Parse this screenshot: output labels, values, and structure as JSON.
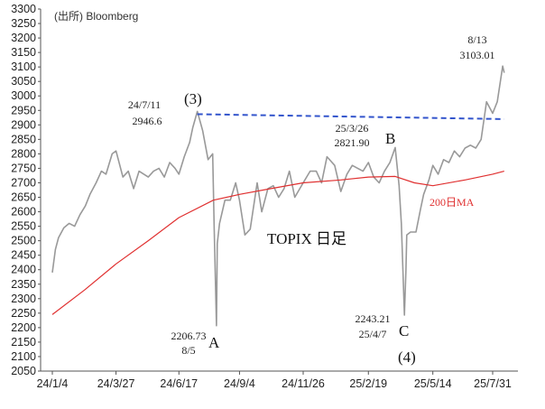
{
  "source_note": "(出所) Bloomberg",
  "chart_data": {
    "type": "line",
    "title": "TOPIX 日足",
    "ylim": [
      2050,
      3300
    ],
    "yticks": [
      2050,
      2100,
      2150,
      2200,
      2250,
      2300,
      2350,
      2400,
      2450,
      2500,
      2550,
      2600,
      2650,
      2700,
      2750,
      2800,
      2850,
      2900,
      2950,
      3000,
      3050,
      3100,
      3150,
      3200,
      3250,
      3300
    ],
    "xticks": [
      "24/1/4",
      "24/3/27",
      "24/6/17",
      "24/9/4",
      "24/11/26",
      "25/2/19",
      "25/5/14",
      "25/7/31"
    ],
    "series": [
      {
        "name": "TOPIX",
        "color": "#999999",
        "points": [
          [
            "24/1/4",
            2390
          ],
          [
            "24/1/8",
            2470
          ],
          [
            "24/1/12",
            2510
          ],
          [
            "24/1/19",
            2545
          ],
          [
            "24/1/26",
            2560
          ],
          [
            "24/2/2",
            2550
          ],
          [
            "24/2/9",
            2590
          ],
          [
            "24/2/16",
            2620
          ],
          [
            "24/2/22",
            2660
          ],
          [
            "24/3/1",
            2700
          ],
          [
            "24/3/8",
            2740
          ],
          [
            "24/3/14",
            2730
          ],
          [
            "24/3/22",
            2800
          ],
          [
            "24/3/27",
            2810
          ],
          [
            "24/4/5",
            2720
          ],
          [
            "24/4/12",
            2740
          ],
          [
            "24/4/19",
            2680
          ],
          [
            "24/4/26",
            2740
          ],
          [
            "24/5/8",
            2720
          ],
          [
            "24/5/15",
            2740
          ],
          [
            "24/5/22",
            2750
          ],
          [
            "24/5/29",
            2720
          ],
          [
            "24/6/5",
            2770
          ],
          [
            "24/6/12",
            2750
          ],
          [
            "24/6/17",
            2730
          ],
          [
            "24/6/24",
            2790
          ],
          [
            "24/7/1",
            2840
          ],
          [
            "24/7/5",
            2890
          ],
          [
            "24/7/11",
            2946.6
          ],
          [
            "24/7/18",
            2880
          ],
          [
            "24/7/25",
            2780
          ],
          [
            "24/7/31",
            2800
          ],
          [
            "24/8/2",
            2540
          ],
          [
            "24/8/5",
            2206.73
          ],
          [
            "24/8/6",
            2490
          ],
          [
            "24/8/9",
            2560
          ],
          [
            "24/8/16",
            2640
          ],
          [
            "24/8/23",
            2640
          ],
          [
            "24/8/30",
            2700
          ],
          [
            "24/9/4",
            2640
          ],
          [
            "24/9/11",
            2520
          ],
          [
            "24/9/18",
            2540
          ],
          [
            "24/9/27",
            2700
          ],
          [
            "24/10/3",
            2600
          ],
          [
            "24/10/11",
            2680
          ],
          [
            "24/10/18",
            2690
          ],
          [
            "24/10/25",
            2650
          ],
          [
            "24/11/1",
            2680
          ],
          [
            "24/11/8",
            2740
          ],
          [
            "24/11/15",
            2650
          ],
          [
            "24/11/26",
            2700
          ],
          [
            "24/12/5",
            2740
          ],
          [
            "24/12/13",
            2740
          ],
          [
            "24/12/20",
            2700
          ],
          [
            "24/12/27",
            2790
          ],
          [
            "25/1/6",
            2760
          ],
          [
            "25/1/14",
            2670
          ],
          [
            "25/1/22",
            2730
          ],
          [
            "25/1/29",
            2760
          ],
          [
            "25/2/5",
            2750
          ],
          [
            "25/2/12",
            2740
          ],
          [
            "25/2/19",
            2770
          ],
          [
            "25/2/26",
            2720
          ],
          [
            "25/3/5",
            2700
          ],
          [
            "25/3/12",
            2740
          ],
          [
            "25/3/19",
            2770
          ],
          [
            "25/3/26",
            2821.9
          ],
          [
            "25/3/31",
            2690
          ],
          [
            "25/4/3",
            2560
          ],
          [
            "25/4/7",
            2243.21
          ],
          [
            "25/4/9",
            2400
          ],
          [
            "25/4/10",
            2520
          ],
          [
            "25/4/15",
            2530
          ],
          [
            "25/4/22",
            2530
          ],
          [
            "25/4/28",
            2610
          ],
          [
            "25/5/2",
            2660
          ],
          [
            "25/5/9",
            2710
          ],
          [
            "25/5/14",
            2760
          ],
          [
            "25/5/21",
            2730
          ],
          [
            "25/5/28",
            2780
          ],
          [
            "25/6/4",
            2770
          ],
          [
            "25/6/11",
            2810
          ],
          [
            "25/6/18",
            2790
          ],
          [
            "25/6/25",
            2820
          ],
          [
            "25/7/2",
            2830
          ],
          [
            "25/7/9",
            2820
          ],
          [
            "25/7/16",
            2850
          ],
          [
            "25/7/23",
            2980
          ],
          [
            "25/7/31",
            2940
          ],
          [
            "25/8/6",
            2980
          ],
          [
            "25/8/13",
            3103.01
          ],
          [
            "25/8/15",
            3080
          ]
        ]
      },
      {
        "name": "200日MA",
        "color": "#e03030",
        "points": [
          [
            "24/1/4",
            2245
          ],
          [
            "24/2/15",
            2330
          ],
          [
            "24/3/27",
            2420
          ],
          [
            "24/5/8",
            2500
          ],
          [
            "24/6/17",
            2580
          ],
          [
            "24/8/1",
            2640
          ],
          [
            "24/9/4",
            2660
          ],
          [
            "24/10/15",
            2680
          ],
          [
            "24/11/26",
            2700
          ],
          [
            "25/1/14",
            2710
          ],
          [
            "25/2/19",
            2720
          ],
          [
            "25/3/26",
            2722
          ],
          [
            "25/4/20",
            2700
          ],
          [
            "25/5/14",
            2690
          ],
          [
            "25/6/25",
            2710
          ],
          [
            "25/7/31",
            2730
          ],
          [
            "25/8/15",
            2740
          ]
        ]
      }
    ],
    "trendline": {
      "style": "dashed",
      "color": "#3355cc",
      "from": [
        "24/7/11",
        2937
      ],
      "to": [
        "25/8/15",
        2920
      ]
    },
    "annotations": {
      "peak_3_label": "(3)",
      "peak_3_date": "24/7/11",
      "peak_3_value": "2946.6",
      "A_label": "A",
      "A_value": "2206.73",
      "A_date": "8/5",
      "B_label": "B",
      "B_date": "25/3/26",
      "B_value": "2821.90",
      "C_label": "C",
      "C_value": "2243.21",
      "C_date": "25/4/7",
      "wave_4_label": "(4)",
      "latest_date": "8/13",
      "latest_value": "3103.01",
      "ma_label": "200日MA"
    }
  }
}
